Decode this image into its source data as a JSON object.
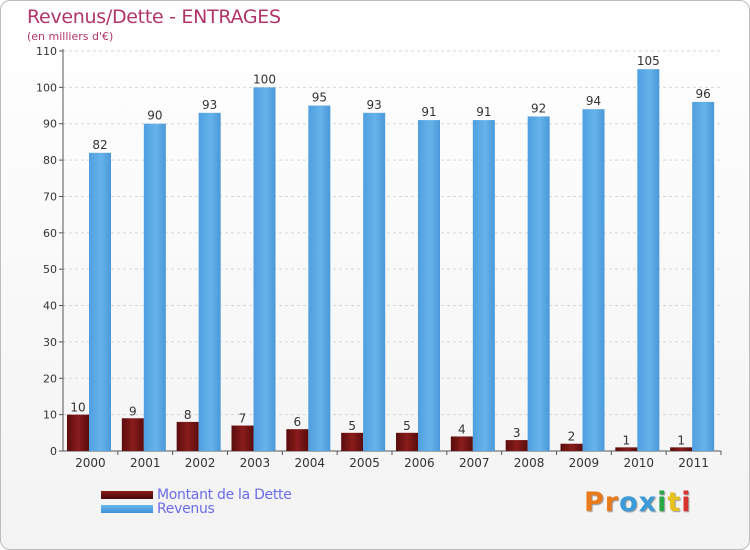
{
  "header": {
    "title": "Revenus/Dette - ENTRAGES",
    "subtitle": "(en milliers d'€)"
  },
  "colors": {
    "title": "#b0356b",
    "debt": "#7a1414",
    "revenue": "#5aaae6",
    "legend_text": "#6b6be8"
  },
  "legend": {
    "debt_label": "Montant de la Dette",
    "revenue_label": "Revenus"
  },
  "logo": {
    "text": "Proxiti",
    "letter_colors": [
      "#e87a1c",
      "#e87a1c",
      "#3b9ad8",
      "#3b9ad8",
      "#2aa84a",
      "#e8c21c",
      "#d8332f"
    ]
  },
  "chart_data": {
    "type": "bar",
    "title": "Revenus/Dette - ENTRAGES",
    "subtitle": "(en milliers d'€)",
    "xlabel": "",
    "ylabel": "",
    "categories": [
      "2000",
      "2001",
      "2002",
      "2003",
      "2004",
      "2005",
      "2006",
      "2007",
      "2008",
      "2009",
      "2010",
      "2011"
    ],
    "series": [
      {
        "name": "Montant de la Dette",
        "values": [
          10,
          9,
          8,
          7,
          6,
          5,
          5,
          4,
          3,
          2,
          1,
          1
        ]
      },
      {
        "name": "Revenus",
        "values": [
          82,
          90,
          93,
          100,
          95,
          93,
          91,
          91,
          92,
          94,
          105,
          96
        ]
      }
    ],
    "ylim": [
      0,
      110
    ],
    "yticks": [
      0,
      10,
      20,
      30,
      40,
      50,
      60,
      70,
      80,
      90,
      100,
      110
    ],
    "grid": true,
    "legend_position": "bottom-left"
  }
}
